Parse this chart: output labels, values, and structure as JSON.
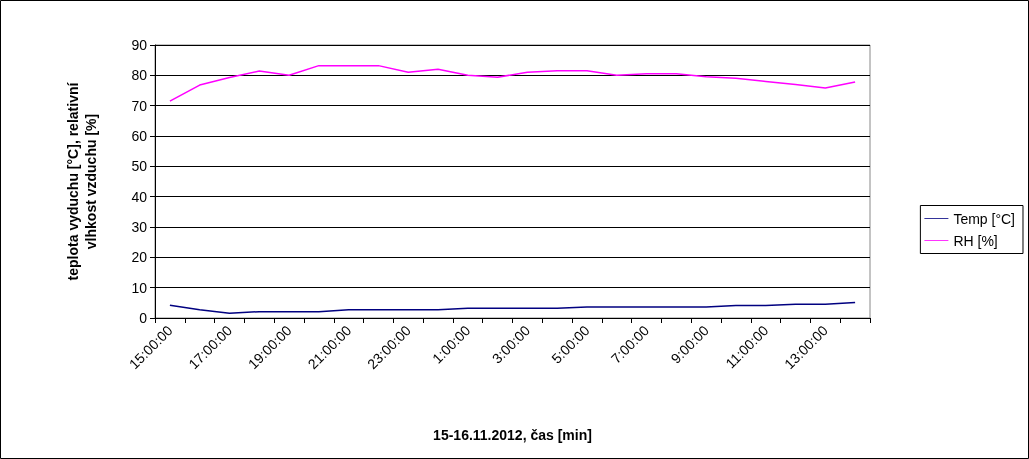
{
  "chart_data": {
    "type": "line",
    "xlabel": "15-16.11.2012, čas [min]",
    "ylabel": "teplota vyduchu [°C], relativní\nvlhkost vzduchu [%]",
    "categories": [
      "15:00:00",
      null,
      "17:00:00",
      null,
      "19:00:00",
      null,
      "21:00:00",
      null,
      "23:00:00",
      null,
      "1:00:00",
      null,
      "3:00:00",
      null,
      "5:00:00",
      null,
      "7:00:00",
      null,
      "9:00:00",
      null,
      "11:00:00",
      null,
      "13:00:00",
      null
    ],
    "series": [
      {
        "name": "Temp [°C]",
        "color": "#000080",
        "values": [
          4.2,
          2.7,
          1.6,
          2.1,
          2.1,
          2.1,
          2.7,
          2.7,
          2.7,
          2.7,
          3.2,
          3.2,
          3.2,
          3.2,
          3.6,
          3.6,
          3.6,
          3.6,
          3.6,
          4.1,
          4.1,
          4.5,
          4.5,
          5.1
        ]
      },
      {
        "name": "RH [%]",
        "color": "#ff00ff",
        "values": [
          71.5,
          76.8,
          79.3,
          81.4,
          80,
          83.2,
          83.2,
          83.2,
          81,
          82,
          80,
          79.4,
          81,
          81.5,
          81.5,
          80,
          80.5,
          80.5,
          79.5,
          79,
          78,
          77,
          75.8,
          77.8
        ]
      }
    ],
    "ylim": [
      0,
      90
    ],
    "yticks": [
      0,
      10,
      20,
      30,
      40,
      50,
      60,
      70,
      80,
      90
    ],
    "grid": "y",
    "legend": "right",
    "marker": "none",
    "line_style": "solid"
  }
}
